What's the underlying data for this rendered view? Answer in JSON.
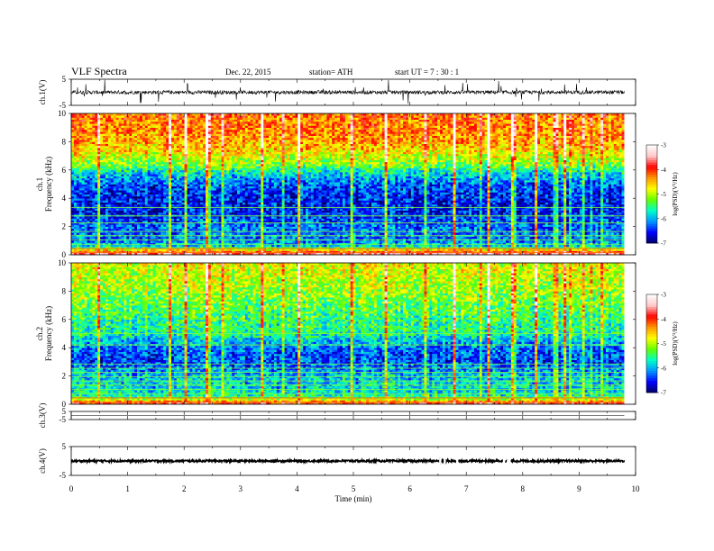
{
  "header": {
    "title": "VLF  Spectra",
    "date": "Dec. 22,  2015",
    "station": "station= ATH",
    "start_ut": "start  UT  =    7  : 30 : 1"
  },
  "chart_data": [
    {
      "type": "line",
      "panel": "ch1-waveform",
      "ylabel": "ch.1(V)",
      "ylim": [
        -5,
        5
      ],
      "y_ticks": [
        "5",
        "-5"
      ],
      "xlim": [
        0,
        10
      ],
      "baseline": 0,
      "noise_amplitude": 0.7,
      "spike_amplitude": 4.5,
      "data_end_min": 9.8
    },
    {
      "type": "heatmap",
      "panel": "ch1-spectrogram",
      "ylabel": "ch.1\nFrequency  (kHz)",
      "ylim": [
        0,
        10
      ],
      "y_ticks": [
        "0",
        "2",
        "4",
        "6",
        "8",
        "10"
      ],
      "xlim": [
        0,
        10
      ],
      "data_end_min": 9.8,
      "colorbar": {
        "label": "log(PSD)(V²/Hz)",
        "range": [
          -7,
          -3
        ],
        "ticks": [
          "-3",
          "-4",
          "-5",
          "-6",
          "-7"
        ],
        "colors": [
          "#000064",
          "#0000ff",
          "#0096ff",
          "#00ffc8",
          "#64ff00",
          "#ffff00",
          "#ff9600",
          "#ff0000",
          "#ffc8c8",
          "#ffffff"
        ]
      },
      "psd_profile_by_khz": [
        [
          0,
          -3.5
        ],
        [
          0.3,
          -4.5
        ],
        [
          0.6,
          -6.0
        ],
        [
          1,
          -6.4
        ],
        [
          2,
          -6.4
        ],
        [
          3,
          -6.7
        ],
        [
          4,
          -6.7
        ],
        [
          5,
          -6.5
        ],
        [
          5.8,
          -6.0
        ],
        [
          6.5,
          -5.3
        ],
        [
          7.5,
          -4.8
        ],
        [
          8.5,
          -4.5
        ],
        [
          10,
          -4.4
        ]
      ],
      "tone_lines_khz": [
        0.15,
        0.45,
        0.75,
        1.05,
        1.35,
        1.65,
        2.25,
        2.75,
        3.35
      ]
    },
    {
      "type": "heatmap",
      "panel": "ch2-spectrogram",
      "ylabel": "ch.2\nFrequency  (kHz)",
      "ylim": [
        0,
        10
      ],
      "y_ticks": [
        "0",
        "2",
        "4",
        "6",
        "8",
        "10"
      ],
      "xlim": [
        0,
        10
      ],
      "data_end_min": 9.8,
      "colorbar": {
        "label": "log(PSD)(V²/Hz)",
        "range": [
          -7,
          -3
        ],
        "ticks": [
          "-3",
          "-4",
          "-5",
          "-6",
          "-7"
        ],
        "colors": [
          "#000064",
          "#0000ff",
          "#0096ff",
          "#00ffc8",
          "#64ff00",
          "#ffff00",
          "#ff9600",
          "#ff0000",
          "#ffc8c8",
          "#ffffff"
        ]
      },
      "psd_profile_by_khz": [
        [
          0,
          -3.8
        ],
        [
          0.3,
          -4.8
        ],
        [
          0.6,
          -5.8
        ],
        [
          1,
          -6.0
        ],
        [
          2,
          -6.1
        ],
        [
          3,
          -6.6
        ],
        [
          4,
          -6.4
        ],
        [
          5,
          -5.8
        ],
        [
          6,
          -5.7
        ],
        [
          7,
          -5.5
        ],
        [
          8.5,
          -5.2
        ],
        [
          10,
          -5.0
        ]
      ],
      "tone_lines_khz": [
        0.15,
        0.45,
        0.75,
        1.05,
        1.35,
        1.65,
        1.95,
        2.25,
        2.55,
        2.85,
        4.2,
        5.0
      ]
    },
    {
      "type": "line",
      "panel": "ch3-waveform",
      "ylabel": "ch.3(V)",
      "ylim": [
        -5,
        5
      ],
      "y_ticks": [
        "5",
        "-5"
      ],
      "xlim": [
        0,
        10
      ],
      "baseline": 0,
      "noise_amplitude": 0.05,
      "spike_amplitude": 0,
      "data_end_min": 9.8
    },
    {
      "type": "line",
      "panel": "ch4-waveform",
      "ylabel": "ch.4(V)",
      "ylim": [
        -5,
        5
      ],
      "y_ticks": [
        "5",
        "-5"
      ],
      "xlim": [
        0,
        10
      ],
      "baseline": 0,
      "noise_amplitude": 0.35,
      "spike_amplitude": 0,
      "data_end_min": 9.8
    }
  ],
  "x_axis": {
    "label": "Time  (min)",
    "ticks": [
      "0",
      "1",
      "2",
      "3",
      "4",
      "5",
      "6",
      "7",
      "8",
      "9",
      "10"
    ]
  }
}
